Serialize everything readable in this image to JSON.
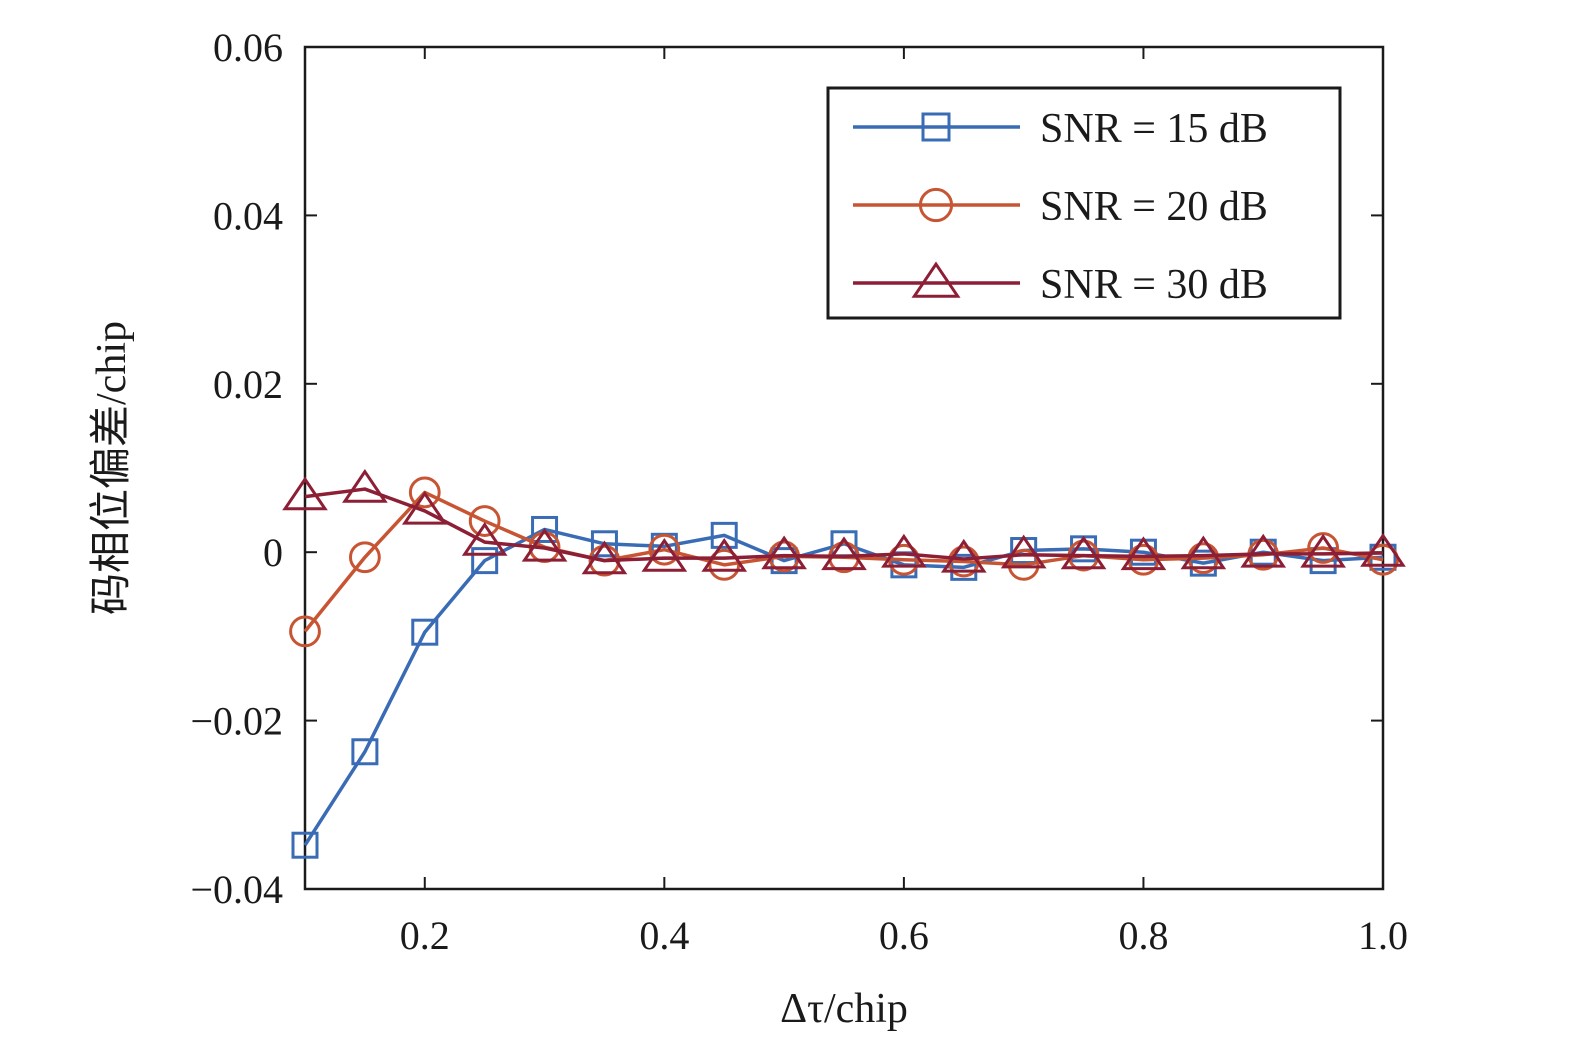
{
  "chart_data": {
    "type": "line",
    "title": "",
    "xlabel": "Δτ/chip",
    "ylabel": "码相位偏差/chip",
    "xlim": [
      0.1,
      1.0
    ],
    "ylim": [
      -0.04,
      0.06
    ],
    "x_ticks": [
      0.2,
      0.4,
      0.6,
      0.8,
      1.0
    ],
    "x_tick_labels": [
      "0.2",
      "0.4",
      "0.6",
      "0.8",
      "1.0"
    ],
    "y_ticks": [
      -0.04,
      -0.02,
      0,
      0.02,
      0.04,
      0.06
    ],
    "y_tick_labels": [
      "−0.04",
      "−0.02",
      "0",
      "0.02",
      "0.04",
      "0.06"
    ],
    "grid": false,
    "legend_position": "top-right",
    "x": [
      0.1,
      0.15,
      0.2,
      0.25,
      0.3,
      0.35,
      0.4,
      0.45,
      0.5,
      0.55,
      0.6,
      0.65,
      0.7,
      0.75,
      0.8,
      0.85,
      0.9,
      0.95,
      1.0
    ],
    "series": [
      {
        "name": "SNR = 15 dB",
        "color": "#3a6cb5",
        "marker": "square",
        "values": [
          -0.0348,
          -0.0237,
          -0.0095,
          -0.001,
          0.0027,
          0.001,
          0.0007,
          0.002,
          -0.001,
          0.001,
          -0.0015,
          -0.0018,
          0.0002,
          0.0004,
          0.0,
          -0.0013,
          0.0,
          -0.001,
          -0.0006
        ]
      },
      {
        "name": "SNR = 20 dB",
        "color": "#c75533",
        "marker": "circle",
        "values": [
          -0.0094,
          -0.0006,
          0.0071,
          0.0037,
          0.0006,
          -0.001,
          0.0003,
          -0.0015,
          -0.0005,
          -0.0006,
          -0.0009,
          -0.0011,
          -0.0015,
          -0.0004,
          -0.0009,
          -0.0007,
          -0.0003,
          0.0005,
          -0.0009
        ]
      },
      {
        "name": "SNR = 30 dB",
        "color": "#8c1e35",
        "marker": "triangle",
        "values": [
          0.0066,
          0.0075,
          0.0049,
          0.0012,
          0.0005,
          -0.001,
          -0.0007,
          -0.0007,
          -0.0004,
          -0.0005,
          -0.0002,
          -0.0008,
          -0.0003,
          -0.0004,
          -0.0005,
          -0.0004,
          -0.0002,
          -0.0002,
          -0.0001
        ]
      }
    ]
  }
}
